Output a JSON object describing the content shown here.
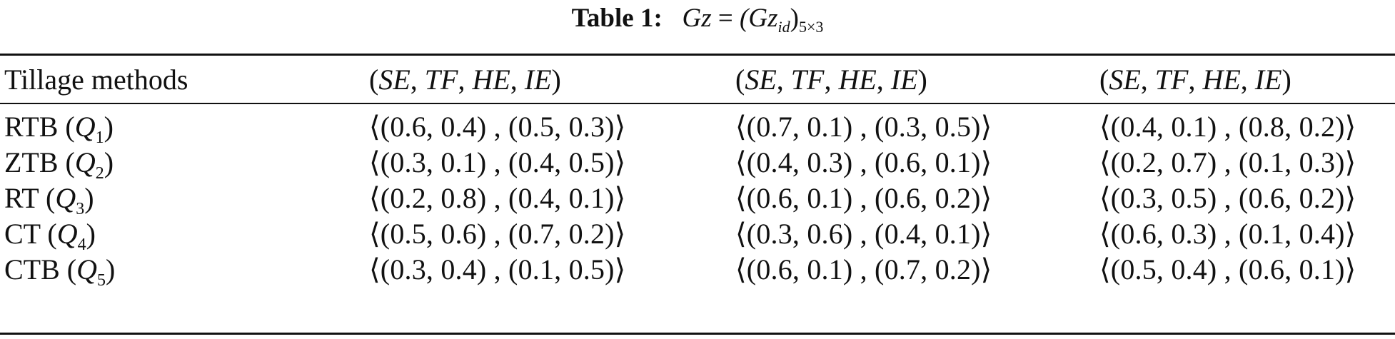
{
  "table": {
    "caption": {
      "label": "Table 1:",
      "formula_lhs": "Gz",
      "equals": "=",
      "formula_rhs": "(Gz",
      "formula_sub": "id",
      "formula_close": ")",
      "dimension": "5×3"
    },
    "header": {
      "first_col": "Tillage methods",
      "criteria_groups": [
        [
          "SE",
          "TF",
          "HE",
          "IE"
        ],
        [
          "SE",
          "TF",
          "HE",
          "IE"
        ],
        [
          "SE",
          "TF",
          "HE",
          "IE"
        ]
      ]
    },
    "rows": [
      {
        "name": "RTB",
        "symbol": "Q",
        "index": "1",
        "cells": [
          "⟨(0.6, 0.4) , (0.5, 0.3)⟩",
          "⟨(0.7, 0.1) , (0.3, 0.5)⟩",
          "⟨(0.4, 0.1) , (0.8, 0.2)⟩"
        ]
      },
      {
        "name": "ZTB",
        "symbol": "Q",
        "index": "2",
        "cells": [
          "⟨(0.3, 0.1) , (0.4, 0.5)⟩",
          "⟨(0.4, 0.3) , (0.6, 0.1)⟩",
          "⟨(0.2, 0.7) , (0.1, 0.3)⟩"
        ]
      },
      {
        "name": "RT",
        "symbol": "Q",
        "index": "3",
        "cells": [
          "⟨(0.2, 0.8) , (0.4, 0.1)⟩",
          "⟨(0.6, 0.1) , (0.6, 0.2)⟩",
          "⟨(0.3, 0.5) , (0.6, 0.2)⟩"
        ]
      },
      {
        "name": "CT",
        "symbol": "Q",
        "index": "4",
        "cells": [
          "⟨(0.5, 0.6) , (0.7, 0.2)⟩",
          "⟨(0.3, 0.6) , (0.4, 0.1)⟩",
          "⟨(0.6, 0.3) , (0.1, 0.4)⟩"
        ]
      },
      {
        "name": "CTB",
        "symbol": "Q",
        "index": "5",
        "cells": [
          "⟨(0.3, 0.4) , (0.1, 0.5)⟩",
          "⟨(0.6, 0.1) , (0.7, 0.2)⟩",
          "⟨(0.5, 0.4) , (0.6, 0.1)⟩"
        ]
      }
    ]
  }
}
